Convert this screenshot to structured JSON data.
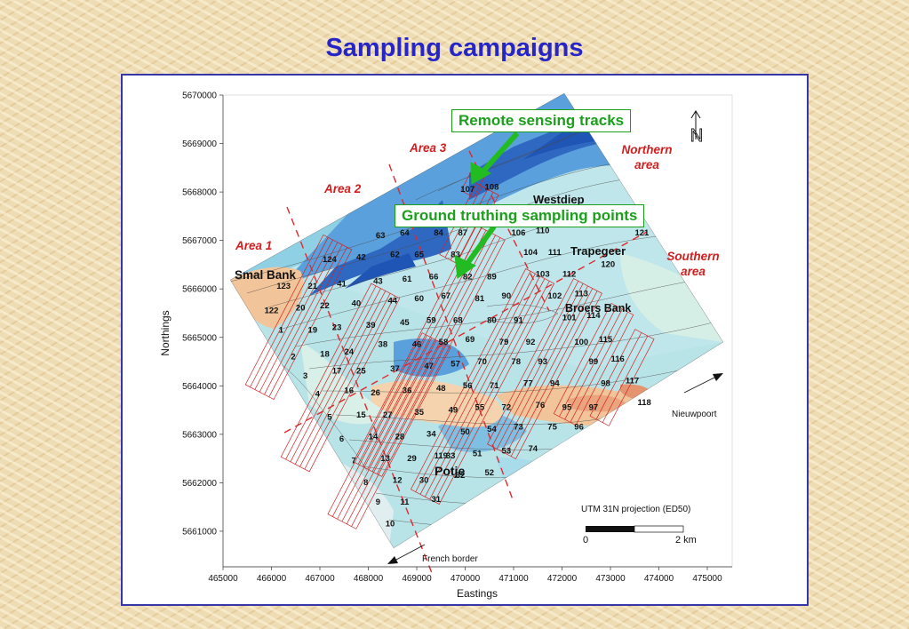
{
  "slide": {
    "title": "Sampling campaigns"
  },
  "map": {
    "axes": {
      "xlabel": "Eastings",
      "ylabel": "Northings",
      "x_ticks": [
        "465000",
        "466000",
        "467000",
        "468000",
        "469000",
        "470000",
        "471000",
        "472000",
        "473000",
        "474000",
        "475000"
      ],
      "y_ticks": [
        "5670000",
        "5669000",
        "5668000",
        "5667000",
        "5666000",
        "5665000",
        "5664000",
        "5663000",
        "5662000",
        "5661000"
      ]
    },
    "callouts": {
      "remote_sensing": "Remote sensing tracks",
      "ground_truthing": "Ground truthing sampling points"
    },
    "areas": {
      "area1": "Area 1",
      "area2": "Area 2",
      "area3": "Area 3",
      "northern_line1": "Northern",
      "northern_line2": "area",
      "southern_line1": "Southern",
      "southern_line2": "area"
    },
    "places": {
      "smal_bank": "Smal Bank",
      "westdiep": "Westdiep",
      "trapegeer": "Trapegeer",
      "broers_bank": "Broers Bank",
      "potje": "Potje",
      "nieuwpoort": "Nieuwpoort",
      "french_border": "French border"
    },
    "projection": "UTM 31N projection (ED50)",
    "scale_bar": {
      "start": "0",
      "end": "2 km"
    },
    "north_arrow": "N",
    "colors": {
      "deep": "#1f55b4",
      "mid": "#5aa0dc",
      "shallow": "#a8dcea",
      "bank": "#f2c49a",
      "track": "#d22323",
      "callout": "#1aa01a",
      "area_label": "#d21e1e",
      "title": "#2525c8"
    },
    "sample_points": [
      {
        "id": "1",
        "e": 466200,
        "n": 5665100
      },
      {
        "id": "2",
        "e": 466450,
        "n": 5664550
      },
      {
        "id": "3",
        "e": 466700,
        "n": 5664150
      },
      {
        "id": "4",
        "e": 466950,
        "n": 5663780
      },
      {
        "id": "5",
        "e": 467200,
        "n": 5663300
      },
      {
        "id": "6",
        "e": 467450,
        "n": 5662850
      },
      {
        "id": "7",
        "e": 467700,
        "n": 5662400
      },
      {
        "id": "8",
        "e": 467950,
        "n": 5661950
      },
      {
        "id": "9",
        "e": 468200,
        "n": 5661550
      },
      {
        "id": "10",
        "e": 468450,
        "n": 5661100
      },
      {
        "id": "11",
        "e": 468750,
        "n": 5661550
      },
      {
        "id": "12",
        "e": 468600,
        "n": 5662000
      },
      {
        "id": "13",
        "e": 468350,
        "n": 5662450
      },
      {
        "id": "14",
        "e": 468100,
        "n": 5662900
      },
      {
        "id": "15",
        "e": 467850,
        "n": 5663350
      },
      {
        "id": "16",
        "e": 467600,
        "n": 5663850
      },
      {
        "id": "17",
        "e": 467350,
        "n": 5664250
      },
      {
        "id": "18",
        "e": 467100,
        "n": 5664600
      },
      {
        "id": "19",
        "e": 466850,
        "n": 5665100
      },
      {
        "id": "20",
        "e": 466600,
        "n": 5665550
      },
      {
        "id": "21",
        "e": 466850,
        "n": 5666000
      },
      {
        "id": "22",
        "e": 467100,
        "n": 5665600
      },
      {
        "id": "23",
        "e": 467350,
        "n": 5665150
      },
      {
        "id": "24",
        "e": 467600,
        "n": 5664650
      },
      {
        "id": "25",
        "e": 467850,
        "n": 5664250
      },
      {
        "id": "26",
        "e": 468150,
        "n": 5663800
      },
      {
        "id": "27",
        "e": 468400,
        "n": 5663350
      },
      {
        "id": "28",
        "e": 468650,
        "n": 5662900
      },
      {
        "id": "29",
        "e": 468900,
        "n": 5662450
      },
      {
        "id": "30",
        "e": 469150,
        "n": 5662000
      },
      {
        "id": "31",
        "e": 469400,
        "n": 5661600
      },
      {
        "id": "32",
        "e": 469900,
        "n": 5662100
      },
      {
        "id": "33",
        "e": 469700,
        "n": 5662500
      },
      {
        "id": "34",
        "e": 469300,
        "n": 5662950
      },
      {
        "id": "35",
        "e": 469050,
        "n": 5663400
      },
      {
        "id": "36",
        "e": 468800,
        "n": 5663850
      },
      {
        "id": "37",
        "e": 468550,
        "n": 5664300
      },
      {
        "id": "38",
        "e": 468300,
        "n": 5664800
      },
      {
        "id": "39",
        "e": 468050,
        "n": 5665200
      },
      {
        "id": "40",
        "e": 467750,
        "n": 5665650
      },
      {
        "id": "41",
        "e": 467450,
        "n": 5666050
      },
      {
        "id": "42",
        "e": 467850,
        "n": 5666600
      },
      {
        "id": "43",
        "e": 468200,
        "n": 5666100
      },
      {
        "id": "44",
        "e": 468500,
        "n": 5665700
      },
      {
        "id": "45",
        "e": 468750,
        "n": 5665250
      },
      {
        "id": "46",
        "e": 469000,
        "n": 5664800
      },
      {
        "id": "47",
        "e": 469250,
        "n": 5664350
      },
      {
        "id": "48",
        "e": 469500,
        "n": 5663900
      },
      {
        "id": "49",
        "e": 469750,
        "n": 5663450
      },
      {
        "id": "50",
        "e": 470000,
        "n": 5663000
      },
      {
        "id": "51",
        "e": 470250,
        "n": 5662550
      },
      {
        "id": "52",
        "e": 470500,
        "n": 5662150
      },
      {
        "id": "53",
        "e": 470850,
        "n": 5662600
      },
      {
        "id": "54",
        "e": 470550,
        "n": 5663050
      },
      {
        "id": "55",
        "e": 470300,
        "n": 5663500
      },
      {
        "id": "56",
        "e": 470050,
        "n": 5663950
      },
      {
        "id": "57",
        "e": 469800,
        "n": 5664400
      },
      {
        "id": "58",
        "e": 469550,
        "n": 5664850
      },
      {
        "id": "59",
        "e": 469300,
        "n": 5665300
      },
      {
        "id": "60",
        "e": 469050,
        "n": 5665750
      },
      {
        "id": "61",
        "e": 468800,
        "n": 5666150
      },
      {
        "id": "62",
        "e": 468550,
        "n": 5666650
      },
      {
        "id": "63",
        "e": 468250,
        "n": 5667050
      },
      {
        "id": "64",
        "e": 468750,
        "n": 5667100
      },
      {
        "id": "65",
        "e": 469050,
        "n": 5666650
      },
      {
        "id": "66",
        "e": 469350,
        "n": 5666200
      },
      {
        "id": "67",
        "e": 469600,
        "n": 5665800
      },
      {
        "id": "68",
        "e": 469850,
        "n": 5665300
      },
      {
        "id": "69",
        "e": 470100,
        "n": 5664900
      },
      {
        "id": "70",
        "e": 470350,
        "n": 5664450
      },
      {
        "id": "71",
        "e": 470600,
        "n": 5663950
      },
      {
        "id": "72",
        "e": 470850,
        "n": 5663500
      },
      {
        "id": "73",
        "e": 471100,
        "n": 5663100
      },
      {
        "id": "74",
        "e": 471400,
        "n": 5662650
      },
      {
        "id": "75",
        "e": 471800,
        "n": 5663100
      },
      {
        "id": "76",
        "e": 471550,
        "n": 5663550
      },
      {
        "id": "77",
        "e": 471300,
        "n": 5664000
      },
      {
        "id": "78",
        "e": 471050,
        "n": 5664450
      },
      {
        "id": "79",
        "e": 470800,
        "n": 5664850
      },
      {
        "id": "80",
        "e": 470550,
        "n": 5665300
      },
      {
        "id": "81",
        "e": 470300,
        "n": 5665750
      },
      {
        "id": "82",
        "e": 470050,
        "n": 5666200
      },
      {
        "id": "83",
        "e": 469800,
        "n": 5666650
      },
      {
        "id": "84",
        "e": 469450,
        "n": 5667100
      },
      {
        "id": "87",
        "e": 469950,
        "n": 5667100
      },
      {
        "id": "89",
        "e": 470550,
        "n": 5666200
      },
      {
        "id": "90",
        "e": 470850,
        "n": 5665800
      },
      {
        "id": "91",
        "e": 471100,
        "n": 5665300
      },
      {
        "id": "92",
        "e": 471350,
        "n": 5664850
      },
      {
        "id": "93",
        "e": 471600,
        "n": 5664450
      },
      {
        "id": "94",
        "e": 471850,
        "n": 5664000
      },
      {
        "id": "95",
        "e": 472100,
        "n": 5663500
      },
      {
        "id": "96",
        "e": 472350,
        "n": 5663100
      },
      {
        "id": "97",
        "e": 472650,
        "n": 5663500
      },
      {
        "id": "98",
        "e": 472900,
        "n": 5664000
      },
      {
        "id": "99",
        "e": 472650,
        "n": 5664450
      },
      {
        "id": "100",
        "e": 472400,
        "n": 5664850
      },
      {
        "id": "101",
        "e": 472150,
        "n": 5665350
      },
      {
        "id": "102",
        "e": 471850,
        "n": 5665800
      },
      {
        "id": "103",
        "e": 471600,
        "n": 5666250
      },
      {
        "id": "104",
        "e": 471350,
        "n": 5666700
      },
      {
        "id": "106",
        "e": 471100,
        "n": 5667100
      },
      {
        "id": "107",
        "e": 470050,
        "n": 5668000
      },
      {
        "id": "108",
        "e": 470550,
        "n": 5668050
      },
      {
        "id": "110",
        "e": 471600,
        "n": 5667150
      },
      {
        "id": "111",
        "e": 471850,
        "n": 5666700
      },
      {
        "id": "112",
        "e": 472150,
        "n": 5666250
      },
      {
        "id": "113",
        "e": 472400,
        "n": 5665850
      },
      {
        "id": "114",
        "e": 472650,
        "n": 5665400
      },
      {
        "id": "115",
        "e": 472900,
        "n": 5664900
      },
      {
        "id": "116",
        "e": 473150,
        "n": 5664500
      },
      {
        "id": "117",
        "e": 473450,
        "n": 5664050
      },
      {
        "id": "118",
        "e": 473700,
        "n": 5663600
      },
      {
        "id": "119",
        "e": 469500,
        "n": 5662500
      },
      {
        "id": "120",
        "e": 472950,
        "n": 5666450
      },
      {
        "id": "121",
        "e": 473650,
        "n": 5667100
      },
      {
        "id": "122",
        "e": 466000,
        "n": 5665500
      },
      {
        "id": "123",
        "e": 466250,
        "n": 5666000
      },
      {
        "id": "124",
        "e": 467200,
        "n": 5666550
      }
    ]
  }
}
